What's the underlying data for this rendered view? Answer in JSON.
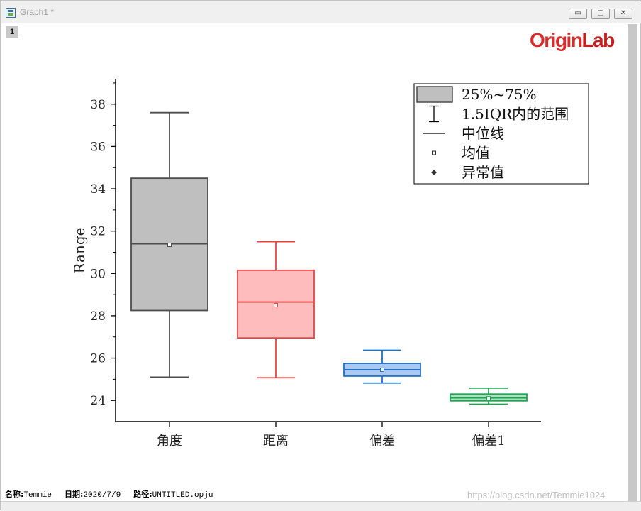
{
  "window": {
    "title": "Graph1 *",
    "layer_tab": "1",
    "buttons": {
      "minimize": "▭",
      "maximize": "▢",
      "close": "✕"
    }
  },
  "logo": {
    "part1": "Origin",
    "part2": "Lab",
    "color": "#d92b2b"
  },
  "chart_data": {
    "type": "box",
    "ylabel": "Range",
    "ylim": [
      23.0,
      39.2
    ],
    "yticks": [
      24,
      26,
      28,
      30,
      32,
      34,
      36,
      38
    ],
    "categories": [
      "角度",
      "距离",
      "偏差",
      "偏差1"
    ],
    "boxes": [
      {
        "category": "角度",
        "whisker_low": 25.1,
        "q1": 28.25,
        "median": 31.4,
        "q3": 34.5,
        "whisker_high": 37.6,
        "mean": 31.35,
        "stroke": "#4d4d4d",
        "fill": "#bfbfbf"
      },
      {
        "category": "距离",
        "whisker_low": 25.07,
        "q1": 26.95,
        "median": 28.65,
        "q3": 30.15,
        "whisker_high": 31.5,
        "mean": 28.5,
        "stroke": "#e04545",
        "fill": "#ffbcbc"
      },
      {
        "category": "偏差",
        "whisker_low": 24.82,
        "q1": 25.15,
        "median": 25.45,
        "q3": 25.75,
        "whisker_high": 26.37,
        "mean": 25.45,
        "stroke": "#1f70c8",
        "fill": "#a9c8f2"
      },
      {
        "category": "偏差1",
        "whisker_low": 23.82,
        "q1": 23.98,
        "median": 24.12,
        "q3": 24.3,
        "whisker_high": 24.58,
        "mean": 24.1,
        "stroke": "#25a155",
        "fill": "#a3e3bd"
      }
    ],
    "legend": {
      "placement": "top-right",
      "items": [
        {
          "symbol": "box",
          "label": "25%~75%"
        },
        {
          "symbol": "whisker",
          "label": "1.5IQR内的范围"
        },
        {
          "symbol": "line",
          "label": "中位线"
        },
        {
          "symbol": "square",
          "label": "均值"
        },
        {
          "symbol": "diamond",
          "label": "异常值"
        }
      ]
    }
  },
  "footer": {
    "name_label": "名称:",
    "name_value": "Temmie",
    "date_label": "日期:",
    "date_value": "2020/7/9",
    "path_label": "路径:",
    "path_value": "UNTITLED.opju"
  },
  "watermark": "https://blog.csdn.net/Temmie1024"
}
